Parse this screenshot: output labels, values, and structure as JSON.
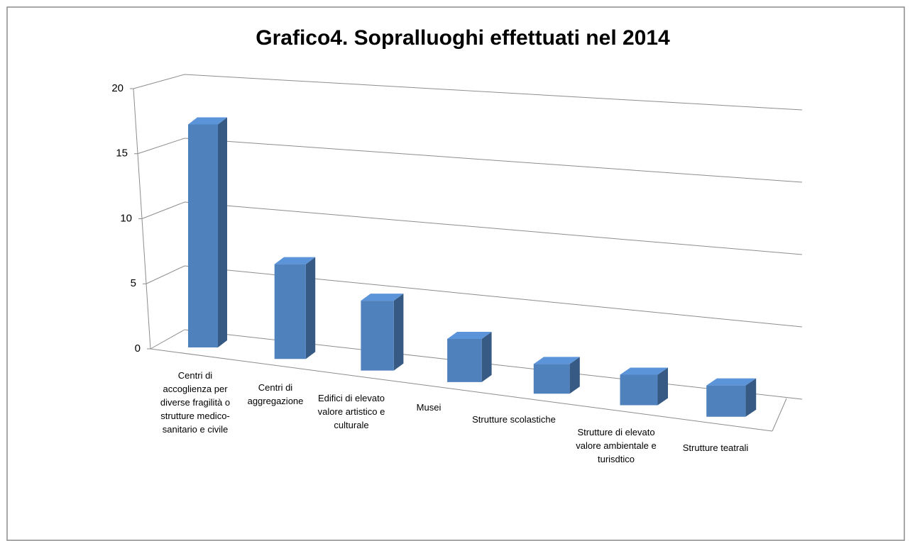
{
  "chart_data": {
    "type": "bar3d",
    "title": "Grafico4. Sopralluoghi effettuati nel 2014",
    "categories": [
      "Centri di accoglienza per diverse fragilità o strutture medico-sanitario e civile",
      "Centri di aggregazione",
      "Edifici di elevato valore artistico e culturale",
      "Musei",
      "Strutture scolastiche",
      "Strutture di elevato valore ambientale e turisdtico",
      "Strutture teatrali"
    ],
    "values": [
      17,
      7,
      5,
      3,
      2,
      2,
      2
    ],
    "color": "#4f81bd",
    "ylim": [
      0,
      20
    ],
    "yticks": [
      0,
      5,
      10,
      15,
      20
    ],
    "grid": true
  }
}
